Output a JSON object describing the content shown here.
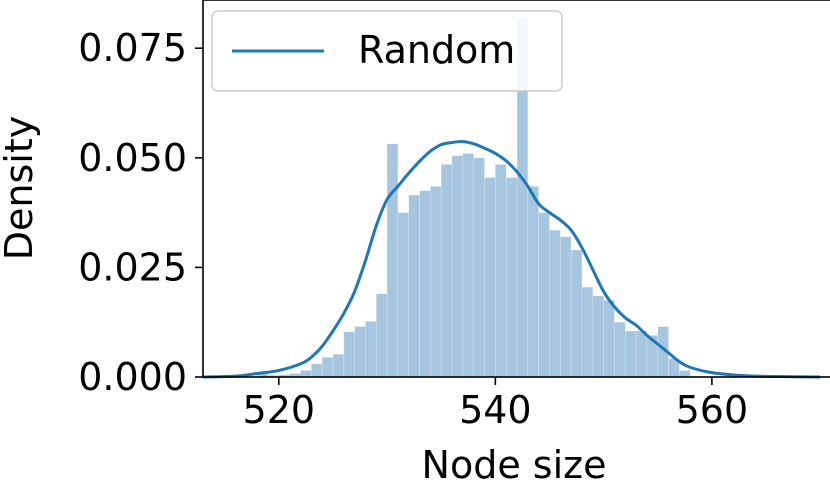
{
  "chart_data": {
    "type": "bar",
    "title": "",
    "xlabel": "Node size",
    "ylabel": "Density",
    "xlim": [
      513,
      571
    ],
    "ylim": [
      0,
      0.086
    ],
    "x_ticks": [
      {
        "value": 520,
        "label": "520"
      },
      {
        "value": 540,
        "label": "540"
      },
      {
        "value": 560,
        "label": "560"
      }
    ],
    "y_ticks": [
      {
        "value": 0.0,
        "label": "0.000"
      },
      {
        "value": 0.025,
        "label": "0.025"
      },
      {
        "value": 0.05,
        "label": "0.050"
      },
      {
        "value": 0.075,
        "label": "0.075"
      }
    ],
    "grid": false,
    "legend": {
      "position": "top-left",
      "entries": [
        "Random"
      ]
    },
    "histogram": {
      "color": "#a6c6e0",
      "bin_width": 1,
      "bin_left_edges": [
        518,
        519,
        520,
        521,
        522,
        523,
        524,
        525,
        526,
        527,
        528,
        529,
        530,
        531,
        532,
        533,
        534,
        535,
        536,
        537,
        538,
        539,
        540,
        541,
        542,
        543,
        544,
        545,
        546,
        547,
        548,
        549,
        550,
        551,
        552,
        553,
        554,
        555,
        556,
        557
      ],
      "density": [
        0.0008,
        0.0004,
        0.0005,
        0.0008,
        0.0015,
        0.003,
        0.0045,
        0.0052,
        0.0103,
        0.0115,
        0.0127,
        0.019,
        0.0532,
        0.0375,
        0.0415,
        0.0425,
        0.0435,
        0.0485,
        0.0505,
        0.051,
        0.05,
        0.0455,
        0.0485,
        0.0455,
        0.082,
        0.0435,
        0.0375,
        0.0335,
        0.032,
        0.029,
        0.0205,
        0.0185,
        0.0175,
        0.0125,
        0.0105,
        0.0105,
        0.0095,
        0.0115,
        0.0042,
        0.0015
      ]
    },
    "series": [
      {
        "name": "Random",
        "type": "line",
        "color": "#1f77b4",
        "x": [
          513,
          516,
          518,
          520,
          522,
          523,
          524,
          525,
          526,
          527,
          528,
          529,
          530,
          531,
          532,
          533,
          534,
          535,
          536,
          537,
          538,
          539,
          540,
          541,
          542,
          543,
          544,
          545,
          546,
          547,
          548,
          549,
          550,
          551,
          552,
          553,
          554,
          555,
          556,
          557,
          558,
          560,
          563,
          566,
          570
        ],
        "y": [
          0.0,
          0.0002,
          0.0008,
          0.0015,
          0.003,
          0.0045,
          0.007,
          0.0105,
          0.0145,
          0.0195,
          0.0265,
          0.0345,
          0.0405,
          0.0435,
          0.0465,
          0.0492,
          0.0515,
          0.053,
          0.0535,
          0.0537,
          0.0532,
          0.0522,
          0.051,
          0.0493,
          0.0468,
          0.0435,
          0.0395,
          0.0375,
          0.0358,
          0.0335,
          0.0295,
          0.0245,
          0.0195,
          0.016,
          0.0135,
          0.0118,
          0.0095,
          0.0075,
          0.0055,
          0.0035,
          0.0022,
          0.001,
          0.0003,
          0.0001,
          0.0
        ]
      }
    ]
  }
}
